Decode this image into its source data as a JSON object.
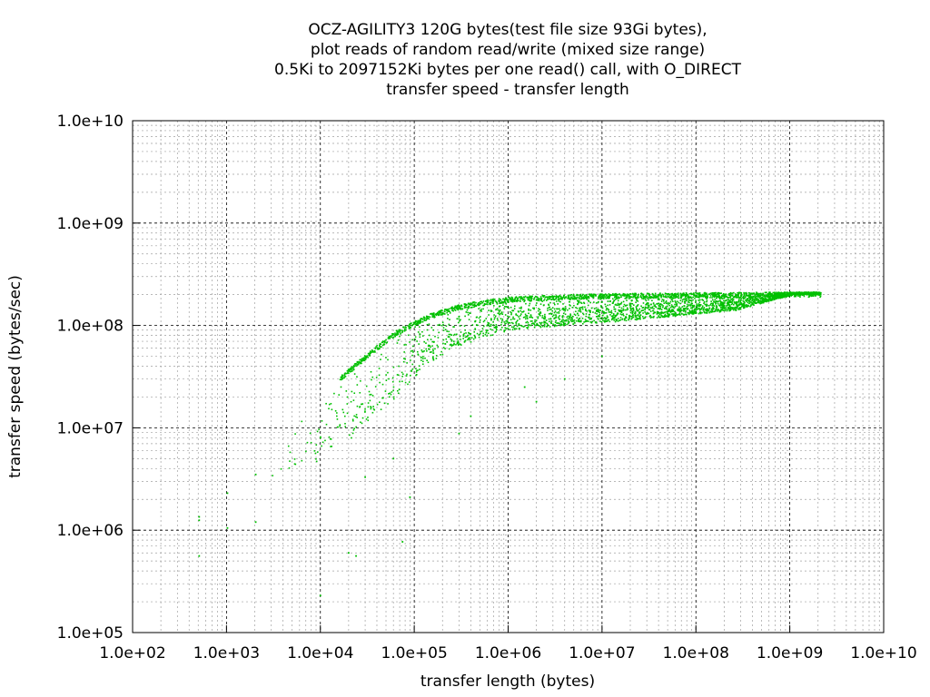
{
  "chart_data": {
    "type": "scatter",
    "title": [
      "OCZ-AGILITY3 120G bytes(test file size 93Gi bytes),",
      "plot reads of random read/write (mixed size range)",
      "0.5Ki to 2097152Ki bytes per one read() call, with O_DIRECT",
      "transfer speed - transfer length"
    ],
    "xlabel": "transfer length (bytes)",
    "ylabel": "transfer speed (bytes/sec)",
    "xscale": "log",
    "yscale": "log",
    "xlim": [
      100,
      10000000000
    ],
    "ylim": [
      100000,
      10000000000
    ],
    "xticks": [
      "1.0e+02",
      "1.0e+03",
      "1.0e+04",
      "1.0e+05",
      "1.0e+06",
      "1.0e+07",
      "1.0e+08",
      "1.0e+09",
      "1.0e+10"
    ],
    "yticks": [
      "1.0e+05",
      "1.0e+06",
      "1.0e+07",
      "1.0e+08",
      "1.0e+09",
      "1.0e+10"
    ],
    "grid": true,
    "point_color": "#00c000",
    "upper_envelope": [
      [
        512,
        1300000
      ],
      [
        1024,
        2500000
      ],
      [
        2048,
        4200000
      ],
      [
        4096,
        8000000
      ],
      [
        8192,
        17000000
      ],
      [
        16384,
        32000000
      ],
      [
        32768,
        55000000
      ],
      [
        65536,
        90000000
      ],
      [
        131072,
        125000000
      ],
      [
        262144,
        155000000
      ],
      [
        524288,
        175000000
      ],
      [
        1048576,
        190000000
      ],
      [
        4194304,
        200000000
      ],
      [
        16777216,
        205000000
      ],
      [
        67108864,
        208000000
      ],
      [
        268435456,
        210000000
      ],
      [
        1073741824,
        212000000
      ],
      [
        2147483648,
        212000000
      ]
    ],
    "lower_envelope": [
      [
        1024,
        1000000
      ],
      [
        4096,
        3000000
      ],
      [
        16384,
        6000000
      ],
      [
        32768,
        12000000
      ],
      [
        65536,
        20000000
      ],
      [
        131072,
        40000000
      ],
      [
        262144,
        60000000
      ],
      [
        524288,
        75000000
      ],
      [
        1048576,
        90000000
      ],
      [
        4194304,
        100000000
      ],
      [
        16777216,
        110000000
      ],
      [
        67108864,
        125000000
      ],
      [
        268435456,
        140000000
      ],
      [
        1073741824,
        200000000
      ]
    ],
    "outliers": [
      [
        512,
        1250000
      ],
      [
        512,
        1350000
      ],
      [
        512,
        560000
      ],
      [
        1024,
        2300000
      ],
      [
        1024,
        1050000
      ],
      [
        2048,
        1200000
      ],
      [
        2048,
        3500000
      ],
      [
        24000,
        560000
      ],
      [
        20000,
        600000
      ],
      [
        10000,
        230000
      ],
      [
        30000,
        3300000
      ],
      [
        75000,
        770000
      ],
      [
        60000,
        5000000
      ],
      [
        90000,
        2100000
      ],
      [
        300000,
        8800000
      ],
      [
        400000,
        13000000
      ],
      [
        2000000,
        18000000
      ],
      [
        4000000,
        30000000
      ],
      [
        1500000,
        25000000
      ],
      [
        10000000,
        50000000
      ]
    ]
  }
}
